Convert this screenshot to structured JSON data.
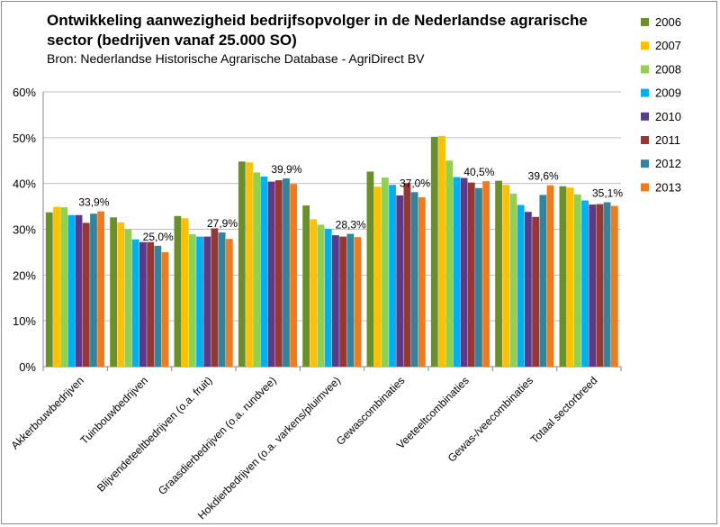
{
  "chart_data": {
    "type": "bar",
    "title": "Ontwikkeling aanwezigheid bedrijfsopvolger in de Nederlandse agrarische sector (bedrijven vanaf 25.000 SO)",
    "subtitle": "Bron: Nederlandse Historische Agrarische Database - AgriDirect BV",
    "xlabel": "",
    "ylabel": "",
    "ylim": [
      0,
      60
    ],
    "yticks": [
      "0%",
      "10%",
      "20%",
      "30%",
      "40%",
      "50%",
      "60%"
    ],
    "grid": true,
    "legend_position": "right",
    "categories": [
      "Akkerbouwbedrijven",
      "Tuinbouwbedrijven",
      "Blijvendeteeltbedrijven (o.a. fruit)",
      "Graasdierbedrijven (o.a. rundvee)",
      "Hokdierbedrijven (o.a. varkens/pluimvee)",
      "Gewascombinaties",
      "Veeteeltcombinaties",
      "Gewas-/veecombinaties",
      "Totaal sectorbreed"
    ],
    "series": [
      {
        "name": "2006",
        "color": "#6a8f2b",
        "values": [
          33.7,
          32.6,
          32.9,
          44.8,
          35.2,
          42.6,
          50.2,
          40.6,
          39.4
        ]
      },
      {
        "name": "2007",
        "color": "#ffc000",
        "values": [
          34.9,
          31.5,
          32.4,
          44.6,
          32.2,
          39.3,
          50.4,
          39.7,
          39.1
        ]
      },
      {
        "name": "2008",
        "color": "#92d050",
        "values": [
          34.8,
          30.0,
          28.9,
          42.4,
          31.0,
          41.3,
          45.0,
          37.8,
          37.6
        ]
      },
      {
        "name": "2009",
        "color": "#00b0f0",
        "values": [
          33.1,
          27.8,
          28.4,
          41.5,
          30.1,
          39.7,
          41.4,
          35.3,
          36.3
        ]
      },
      {
        "name": "2010",
        "color": "#5b3a8e",
        "values": [
          33.1,
          27.2,
          28.4,
          40.4,
          28.7,
          37.4,
          41.2,
          33.8,
          35.4
        ]
      },
      {
        "name": "2011",
        "color": "#953735",
        "values": [
          31.4,
          27.2,
          30.2,
          40.7,
          28.4,
          40.1,
          40.2,
          32.7,
          35.5
        ]
      },
      {
        "name": "2012",
        "color": "#31849b",
        "values": [
          33.4,
          26.4,
          29.3,
          41.1,
          29.0,
          38.1,
          39.0,
          37.5,
          35.9
        ]
      },
      {
        "name": "2013",
        "color": "#f07a1e",
        "values": [
          33.9,
          25.0,
          27.9,
          39.9,
          28.3,
          37.0,
          40.5,
          39.6,
          35.1
        ]
      }
    ],
    "data_labels": [
      "33,9%",
      "25,0%",
      "27,9%",
      "39,9%",
      "28,3%",
      "37,0%",
      "40,5%",
      "39,6%",
      "35,1%"
    ]
  }
}
